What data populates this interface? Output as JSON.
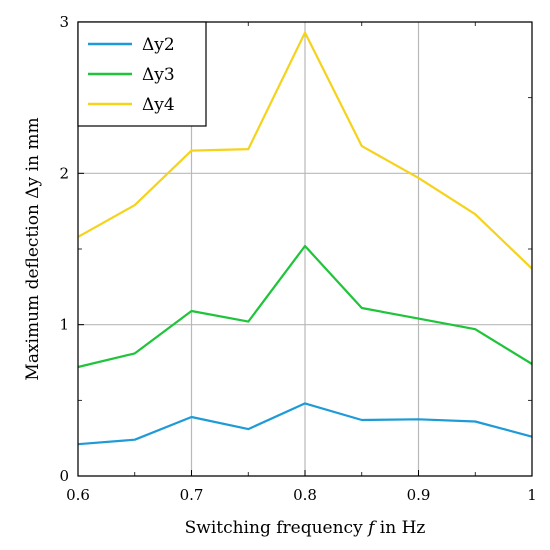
{
  "chart_data": {
    "type": "line",
    "xlabel_parts": [
      "Switching frequency ",
      "f",
      " in Hz"
    ],
    "ylabel": "Maximum deflection Δy in mm",
    "x": [
      0.6,
      0.65,
      0.7,
      0.75,
      0.8,
      0.85,
      0.9,
      0.95,
      1.0
    ],
    "xlim": [
      0.6,
      1.0
    ],
    "ylim": [
      0,
      3
    ],
    "x_ticks": [
      0.6,
      0.7,
      0.8,
      0.9,
      1.0
    ],
    "x_tick_labels": [
      "0.6",
      "0.7",
      "0.8",
      "0.9",
      "1"
    ],
    "y_ticks": [
      0,
      1,
      2,
      3
    ],
    "y_tick_labels": [
      "0",
      "1",
      "2",
      "3"
    ],
    "grid": true,
    "legend_position": "top-left",
    "series": [
      {
        "name": "Δy2",
        "color": "#1e9bd7",
        "values": [
          0.21,
          0.24,
          0.39,
          0.31,
          0.48,
          0.37,
          0.375,
          0.36,
          0.26
        ]
      },
      {
        "name": "Δy3",
        "color": "#1fc43b",
        "values": [
          0.72,
          0.81,
          1.09,
          1.02,
          1.52,
          1.11,
          1.04,
          0.97,
          0.74
        ]
      },
      {
        "name": "Δy4",
        "color": "#f5d31c",
        "values": [
          1.58,
          1.79,
          2.15,
          2.16,
          2.93,
          2.18,
          1.97,
          1.73,
          1.37
        ]
      }
    ]
  }
}
